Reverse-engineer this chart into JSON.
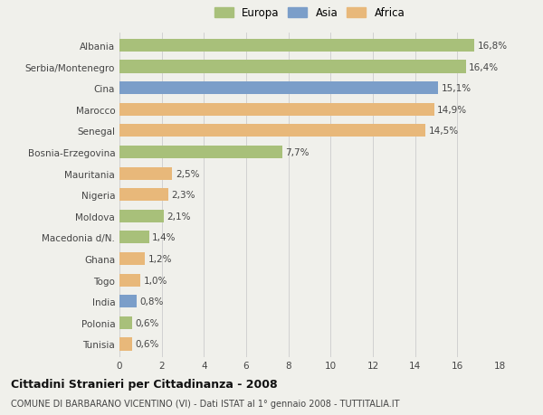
{
  "categories": [
    "Albania",
    "Serbia/Montenegro",
    "Cina",
    "Marocco",
    "Senegal",
    "Bosnia-Erzegovina",
    "Mauritania",
    "Nigeria",
    "Moldova",
    "Macedonia d/N.",
    "Ghana",
    "Togo",
    "India",
    "Polonia",
    "Tunisia"
  ],
  "values": [
    16.8,
    16.4,
    15.1,
    14.9,
    14.5,
    7.7,
    2.5,
    2.3,
    2.1,
    1.4,
    1.2,
    1.0,
    0.8,
    0.6,
    0.6
  ],
  "labels": [
    "16,8%",
    "16,4%",
    "15,1%",
    "14,9%",
    "14,5%",
    "7,7%",
    "2,5%",
    "2,3%",
    "2,1%",
    "1,4%",
    "1,2%",
    "1,0%",
    "0,8%",
    "0,6%",
    "0,6%"
  ],
  "continents": [
    "Europa",
    "Europa",
    "Asia",
    "Africa",
    "Africa",
    "Europa",
    "Africa",
    "Africa",
    "Europa",
    "Europa",
    "Africa",
    "Africa",
    "Asia",
    "Europa",
    "Africa"
  ],
  "colors": {
    "Europa": "#a8c07a",
    "Asia": "#7b9ec9",
    "Africa": "#e8b87a"
  },
  "xlim": [
    0,
    18
  ],
  "xticks": [
    0,
    2,
    4,
    6,
    8,
    10,
    12,
    14,
    16,
    18
  ],
  "title1": "Cittadini Stranieri per Cittadinanza - 2008",
  "title2": "COMUNE DI BARBARANO VICENTINO (VI) - Dati ISTAT al 1° gennaio 2008 - TUTTITALIA.IT",
  "background_color": "#f0f0eb",
  "bar_height": 0.6,
  "label_fontsize": 7.5,
  "tick_fontsize": 7.5,
  "title1_fontsize": 9,
  "title2_fontsize": 7
}
